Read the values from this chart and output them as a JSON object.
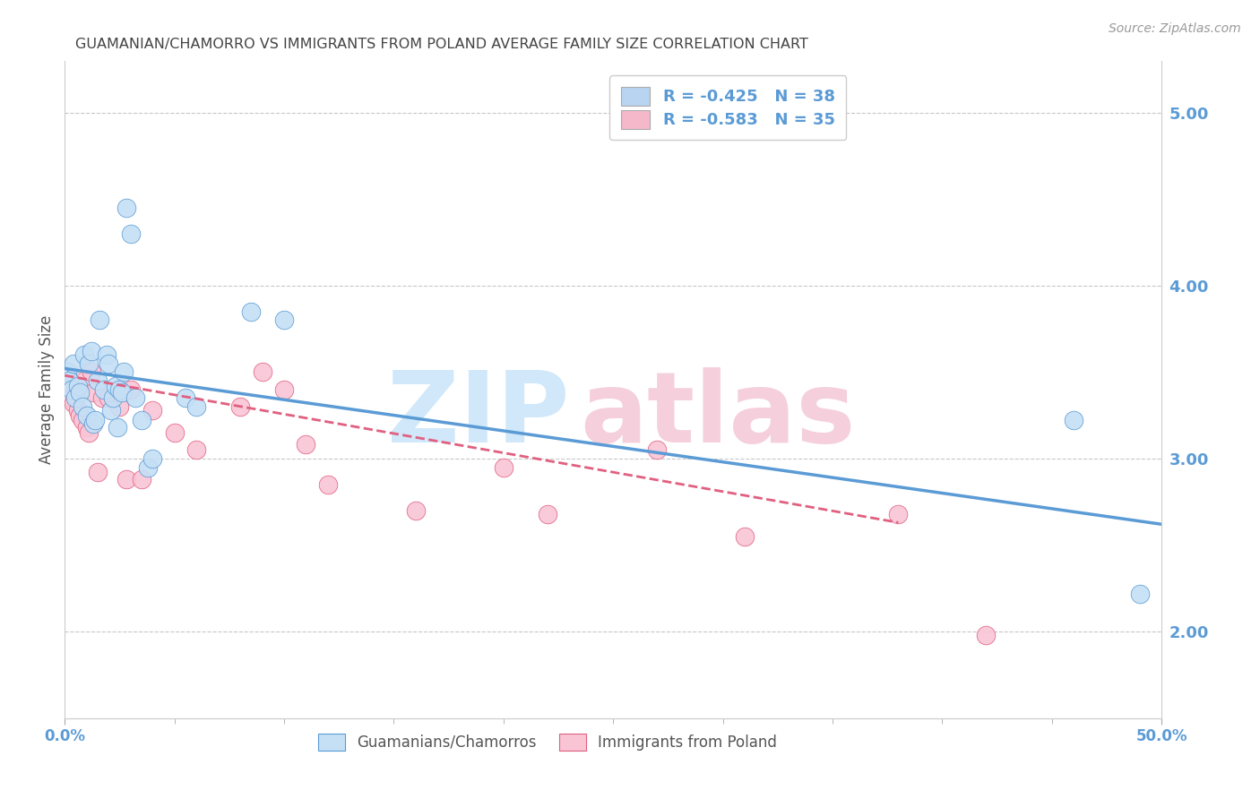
{
  "title": "GUAMANIAN/CHAMORRO VS IMMIGRANTS FROM POLAND AVERAGE FAMILY SIZE CORRELATION CHART",
  "source": "Source: ZipAtlas.com",
  "ylabel": "Average Family Size",
  "right_yticks": [
    2.0,
    3.0,
    4.0,
    5.0
  ],
  "ylim_min": 1.5,
  "ylim_max": 5.3,
  "xlim_min": 0.0,
  "xlim_max": 0.5,
  "legend_entries": [
    {
      "label": "R = -0.425   N = 38",
      "color": "#b8d4f0"
    },
    {
      "label": "R = -0.583   N = 35",
      "color": "#f5b8cb"
    }
  ],
  "legend_labels_bottom": [
    "Guamanians/Chamorros",
    "Immigrants from Poland"
  ],
  "blue_scatter_x": [
    0.001,
    0.002,
    0.003,
    0.004,
    0.005,
    0.006,
    0.007,
    0.008,
    0.009,
    0.01,
    0.011,
    0.012,
    0.013,
    0.014,
    0.015,
    0.016,
    0.018,
    0.019,
    0.02,
    0.021,
    0.022,
    0.023,
    0.024,
    0.025,
    0.026,
    0.027,
    0.028,
    0.03,
    0.032,
    0.035,
    0.038,
    0.04,
    0.055,
    0.06,
    0.085,
    0.1,
    0.46,
    0.49
  ],
  "blue_scatter_y": [
    3.5,
    3.45,
    3.4,
    3.55,
    3.35,
    3.42,
    3.38,
    3.3,
    3.6,
    3.25,
    3.55,
    3.62,
    3.2,
    3.22,
    3.45,
    3.8,
    3.4,
    3.6,
    3.55,
    3.28,
    3.35,
    3.42,
    3.18,
    3.4,
    3.38,
    3.5,
    4.45,
    4.3,
    3.35,
    3.22,
    2.95,
    3.0,
    3.35,
    3.3,
    3.85,
    3.8,
    3.22,
    2.22
  ],
  "pink_scatter_x": [
    0.001,
    0.002,
    0.003,
    0.004,
    0.005,
    0.006,
    0.007,
    0.008,
    0.009,
    0.01,
    0.011,
    0.012,
    0.013,
    0.015,
    0.017,
    0.02,
    0.025,
    0.028,
    0.03,
    0.035,
    0.04,
    0.05,
    0.06,
    0.08,
    0.09,
    0.1,
    0.11,
    0.12,
    0.16,
    0.2,
    0.22,
    0.27,
    0.31,
    0.38,
    0.42
  ],
  "pink_scatter_y": [
    3.4,
    3.38,
    3.35,
    3.32,
    3.42,
    3.28,
    3.25,
    3.22,
    3.45,
    3.18,
    3.15,
    3.5,
    3.38,
    2.92,
    3.35,
    3.35,
    3.3,
    2.88,
    3.4,
    2.88,
    3.28,
    3.15,
    3.05,
    3.3,
    3.5,
    3.4,
    3.08,
    2.85,
    2.7,
    2.95,
    2.68,
    3.05,
    2.55,
    2.68,
    1.98
  ],
  "blue_line_x": [
    0.0,
    0.5
  ],
  "blue_line_y": [
    3.52,
    2.62
  ],
  "pink_line_x": [
    0.0,
    0.38
  ],
  "pink_line_y": [
    3.48,
    2.63
  ],
  "blue_color": "#5b9bd5",
  "pink_color": "#e06080",
  "blue_scatter_facecolor": "#c5dff5",
  "pink_scatter_facecolor": "#f9c5d5",
  "background_color": "#ffffff",
  "grid_color": "#c8c8c8",
  "right_axis_color": "#5b9bd5",
  "title_color": "#444444",
  "source_color": "#999999",
  "watermark_zip_color": "#d0e8fa",
  "watermark_atlas_color": "#f5d0dc"
}
